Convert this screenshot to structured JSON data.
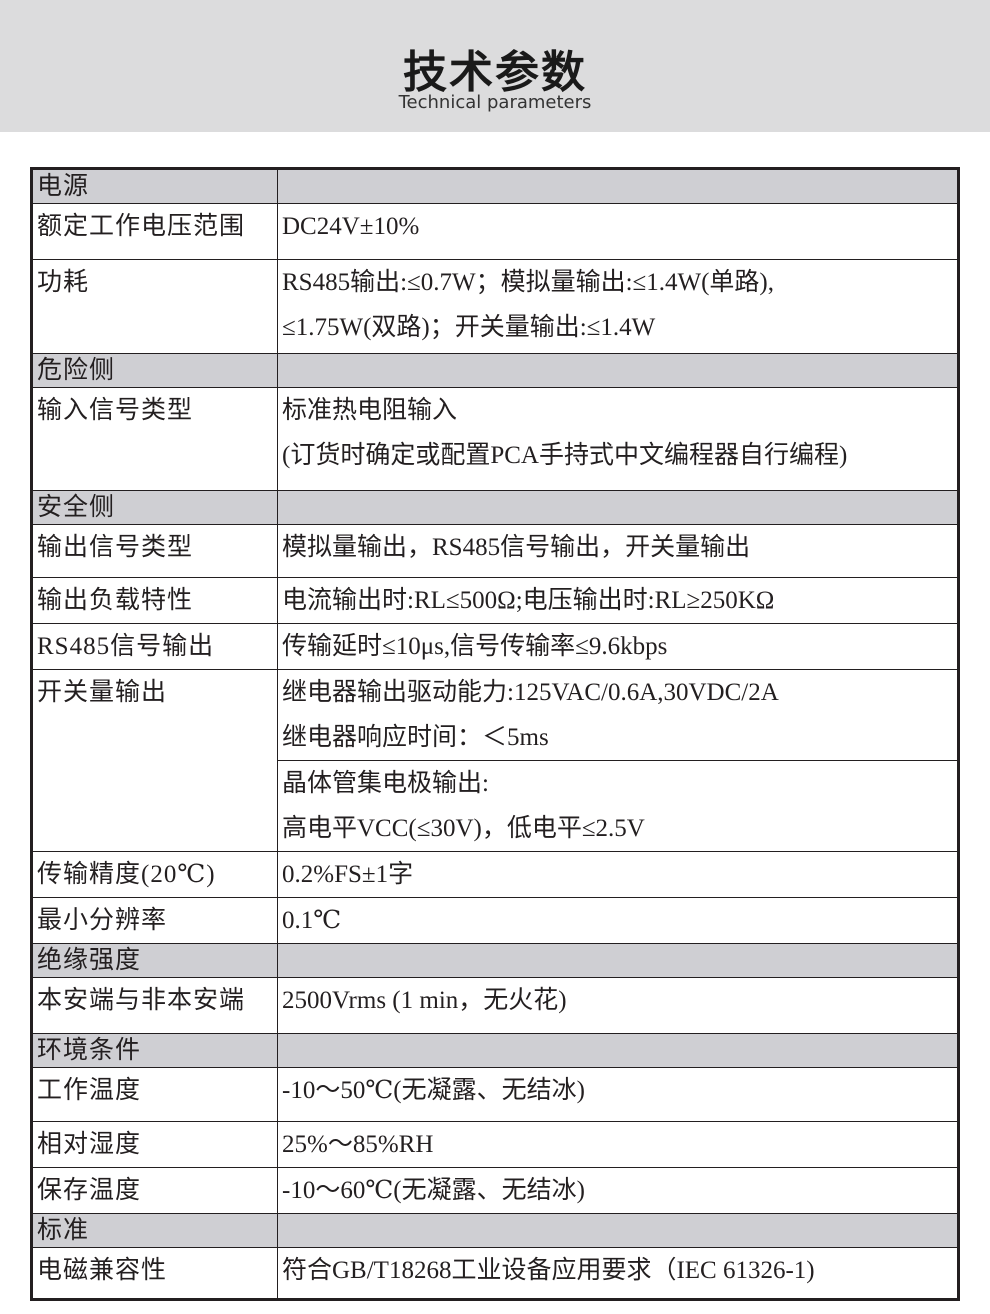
{
  "header": {
    "title": "技术参数",
    "subtitle": "Technical parameters"
  },
  "rows": [
    {
      "type": "section",
      "label": "电源"
    },
    {
      "label": "额定工作电压范围",
      "lines": [
        "DC24V±10%"
      ]
    },
    {
      "label": "功耗",
      "lines": [
        "RS485输出:≤0.7W；模拟量输出:≤1.4W(单路),",
        "≤1.75W(双路)；开关量输出:≤1.4W"
      ]
    },
    {
      "type": "section",
      "label": "危险侧"
    },
    {
      "label": "输入信号类型",
      "lines": [
        "标准热电阻输入",
        "(订货时确定或配置PCA手持式中文编程器自行编程)"
      ]
    },
    {
      "type": "section",
      "label": "安全侧"
    },
    {
      "label": "输出信号类型",
      "lines": [
        "模拟量输出，RS485信号输出，开关量输出"
      ]
    },
    {
      "label": "输出负载特性",
      "lines": [
        "电流输出时:RL≤500Ω;电压输出时:RL≥250KΩ"
      ]
    },
    {
      "label": "RS485信号输出",
      "lines": [
        "传输延时≤10μs,信号传输率≤9.6kbps"
      ]
    },
    {
      "label": "开关量输出",
      "lines": [
        "继电器输出驱动能力:125VAC/0.6A,30VDC/2A",
        "继电器响应时间：＜5ms"
      ],
      "sub": [
        "晶体管集电极输出:",
        "高电平VCC(≤30V)，低电平≤2.5V"
      ]
    },
    {
      "label": "传输精度(20℃)",
      "lines": [
        "0.2%FS±1字"
      ]
    },
    {
      "label": "最小分辨率",
      "lines": [
        "0.1℃"
      ]
    },
    {
      "type": "section",
      "label": "绝缘强度"
    },
    {
      "label": "本安端与非本安端",
      "lines": [
        "2500Vrms (1 min，无火花)"
      ]
    },
    {
      "type": "section",
      "label": "环境条件"
    },
    {
      "label": "工作温度",
      "lines": [
        "-10～50℃(无凝露、无结冰)"
      ]
    },
    {
      "label": "相对湿度",
      "lines": [
        "25%～85%RH"
      ]
    },
    {
      "label": "保存温度",
      "lines": [
        "-10～60℃(无凝露、无结冰)"
      ]
    },
    {
      "type": "section",
      "label": "标准"
    },
    {
      "label": "电磁兼容性",
      "lines": [
        "符合GB/T18268工业设备应用要求（IEC 61326-1)"
      ]
    }
  ]
}
